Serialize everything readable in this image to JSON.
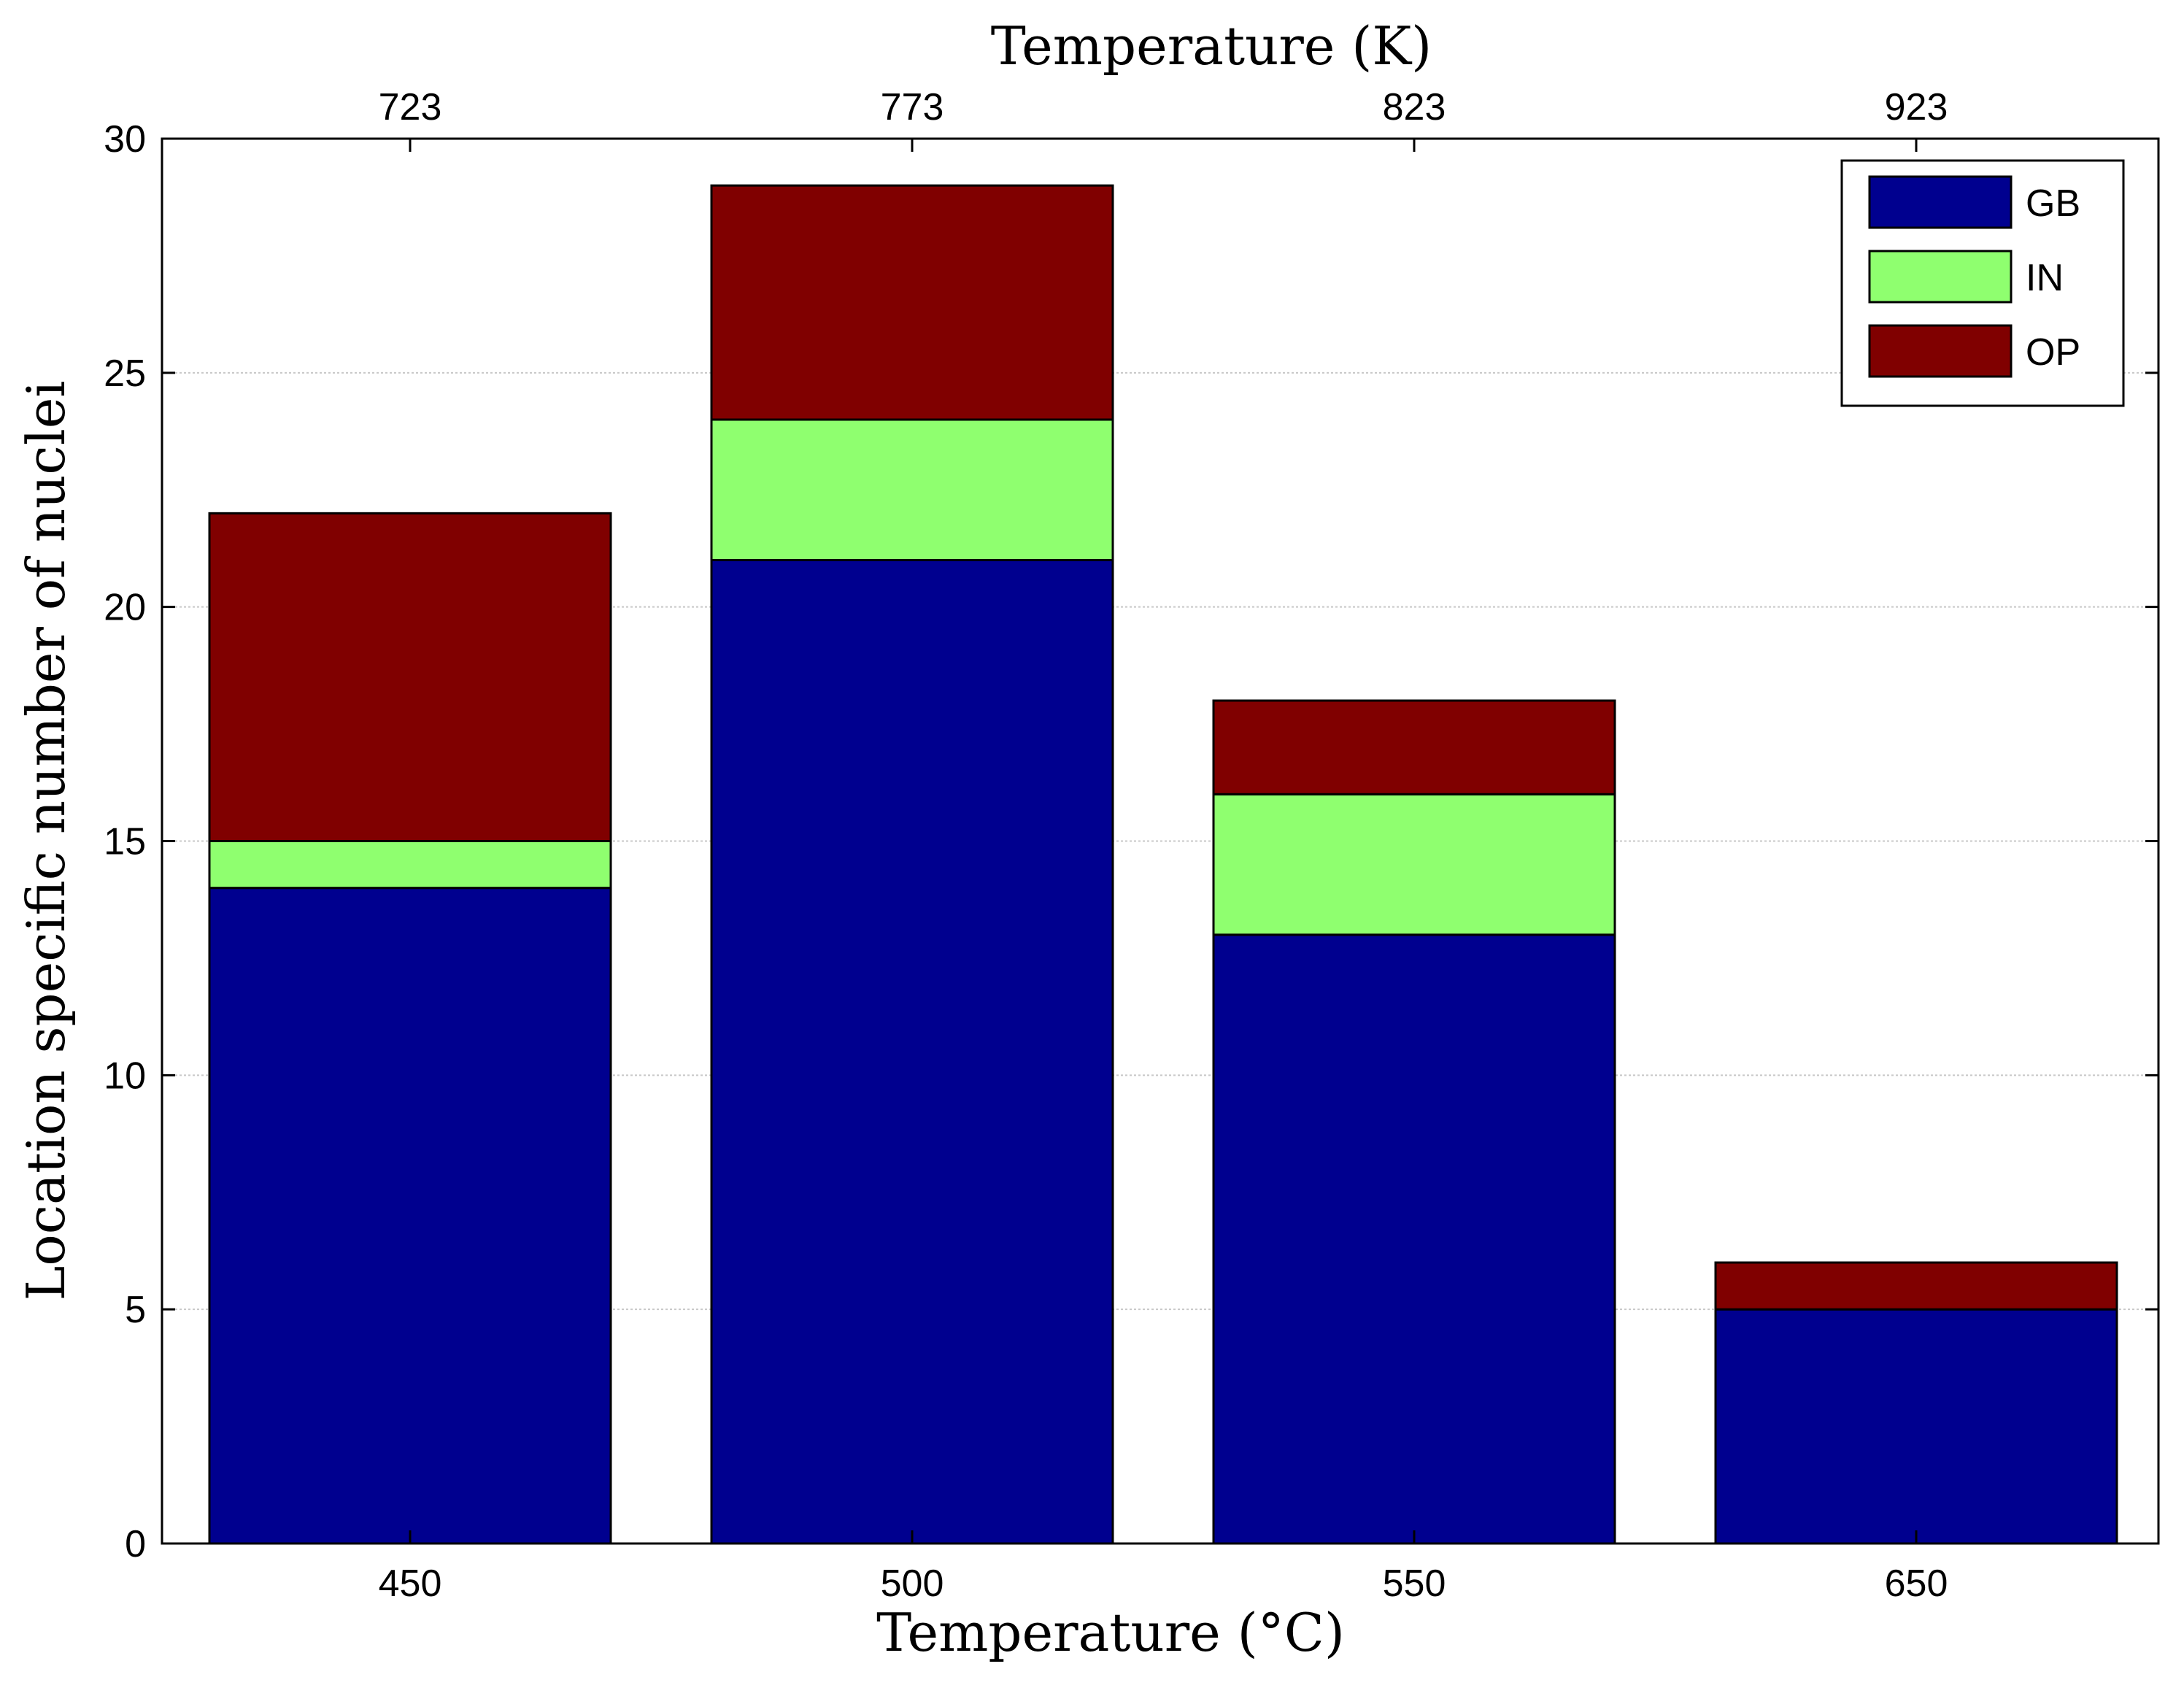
{
  "chart_data": {
    "type": "stacked-bar",
    "categories": [
      "450",
      "500",
      "550",
      "650"
    ],
    "top_categories": [
      "723",
      "773",
      "823",
      "923"
    ],
    "series": [
      {
        "name": "GB",
        "color": "#00008F",
        "values": [
          14,
          21,
          13,
          5
        ]
      },
      {
        "name": "IN",
        "color": "#8FFF6F",
        "values": [
          1,
          3,
          3,
          0
        ]
      },
      {
        "name": "OP",
        "color": "#800000",
        "values": [
          7,
          5,
          2,
          1
        ]
      }
    ],
    "xlabel": "Temperature (°C)",
    "xlabel_top": "Temperature (K)",
    "ylabel": "Location specific number of nuclei",
    "ylim": [
      0,
      30
    ],
    "yticks": [
      "0",
      "5",
      "10",
      "15",
      "20",
      "25",
      "30"
    ],
    "grid": true,
    "legend_position": "top-right"
  }
}
